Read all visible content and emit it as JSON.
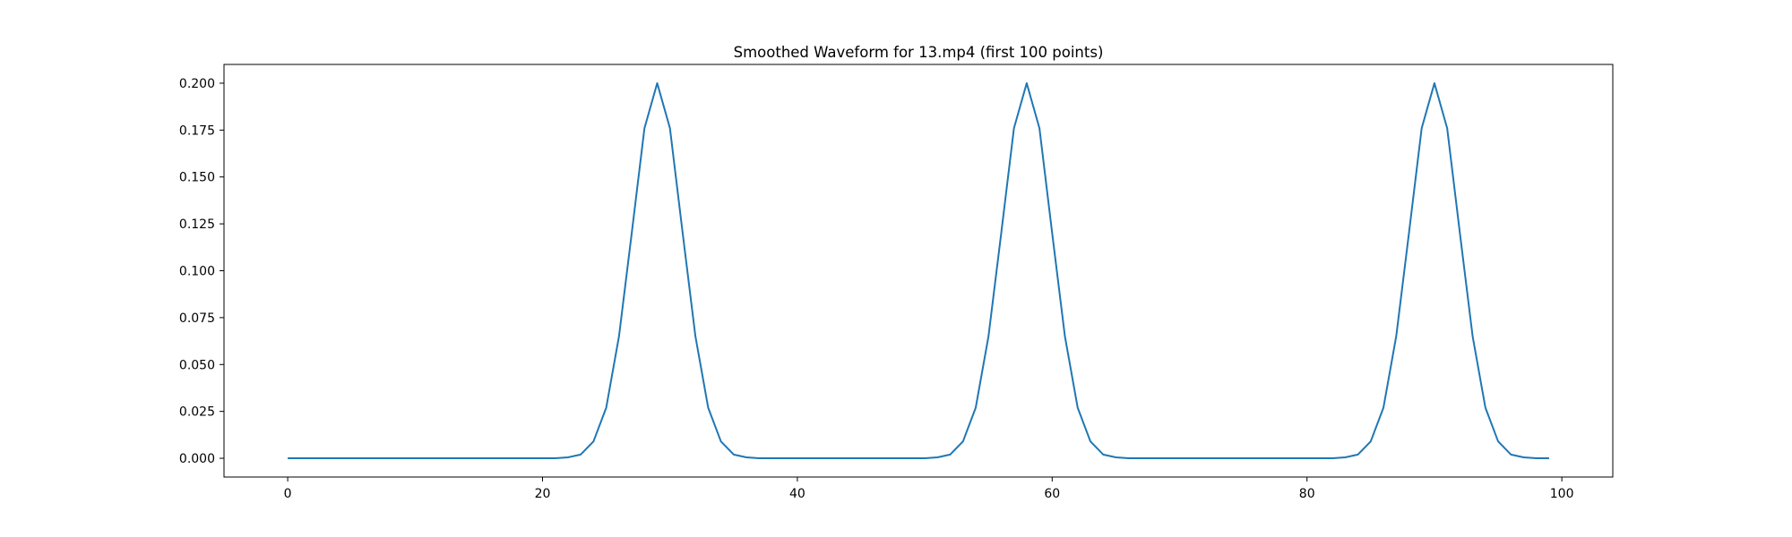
{
  "chart_data": {
    "type": "line",
    "title": "Smoothed Waveform for 13.mp4 (first 100 points)",
    "xlabel": "",
    "ylabel": "",
    "xlim": [
      -5,
      104
    ],
    "ylim": [
      -0.01,
      0.21
    ],
    "x_ticks": [
      0,
      20,
      40,
      60,
      80,
      100
    ],
    "y_ticks": [
      0.0,
      0.025,
      0.05,
      0.075,
      0.1,
      0.125,
      0.15,
      0.175,
      0.2
    ],
    "y_tick_labels": [
      "0.000",
      "0.025",
      "0.050",
      "0.075",
      "0.100",
      "0.125",
      "0.150",
      "0.175",
      "0.200"
    ],
    "grid": false,
    "legend": "none",
    "series": [
      {
        "color": "#1f77b4",
        "x": [
          0,
          1,
          2,
          3,
          4,
          5,
          6,
          7,
          8,
          9,
          10,
          11,
          12,
          13,
          14,
          15,
          16,
          17,
          18,
          19,
          20,
          21,
          22,
          23,
          24,
          25,
          26,
          27,
          28,
          29,
          30,
          31,
          32,
          33,
          34,
          35,
          36,
          37,
          38,
          39,
          40,
          41,
          42,
          43,
          44,
          45,
          46,
          47,
          48,
          49,
          50,
          51,
          52,
          53,
          54,
          55,
          56,
          57,
          58,
          59,
          60,
          61,
          62,
          63,
          64,
          65,
          66,
          67,
          68,
          69,
          70,
          71,
          72,
          73,
          74,
          75,
          76,
          77,
          78,
          79,
          80,
          81,
          82,
          83,
          84,
          85,
          86,
          87,
          88,
          89,
          90,
          91,
          92,
          93,
          94,
          95,
          96,
          97,
          98,
          99
        ],
        "y": [
          0,
          0,
          0,
          0,
          0,
          0,
          0,
          0,
          0,
          0,
          0,
          0,
          0,
          0,
          0,
          0,
          0,
          0,
          0,
          0,
          0,
          0,
          0.0005,
          0.002,
          0.009,
          0.027,
          0.065,
          0.12,
          0.176,
          0.2,
          0.176,
          0.12,
          0.065,
          0.027,
          0.009,
          0.002,
          0.0005,
          0,
          0,
          0,
          0,
          0,
          0,
          0,
          0,
          0,
          0,
          0,
          0,
          0,
          0,
          0.0005,
          0.002,
          0.009,
          0.027,
          0.065,
          0.12,
          0.176,
          0.2,
          0.176,
          0.12,
          0.065,
          0.027,
          0.009,
          0.002,
          0.0005,
          0,
          0,
          0,
          0,
          0,
          0,
          0,
          0,
          0,
          0,
          0,
          0,
          0,
          0,
          0,
          0,
          0,
          0.0005,
          0.002,
          0.009,
          0.027,
          0.065,
          0.12,
          0.176,
          0.2,
          0.176,
          0.12,
          0.065,
          0.027,
          0.009,
          0.002,
          0.0005,
          0,
          0
        ]
      }
    ]
  }
}
